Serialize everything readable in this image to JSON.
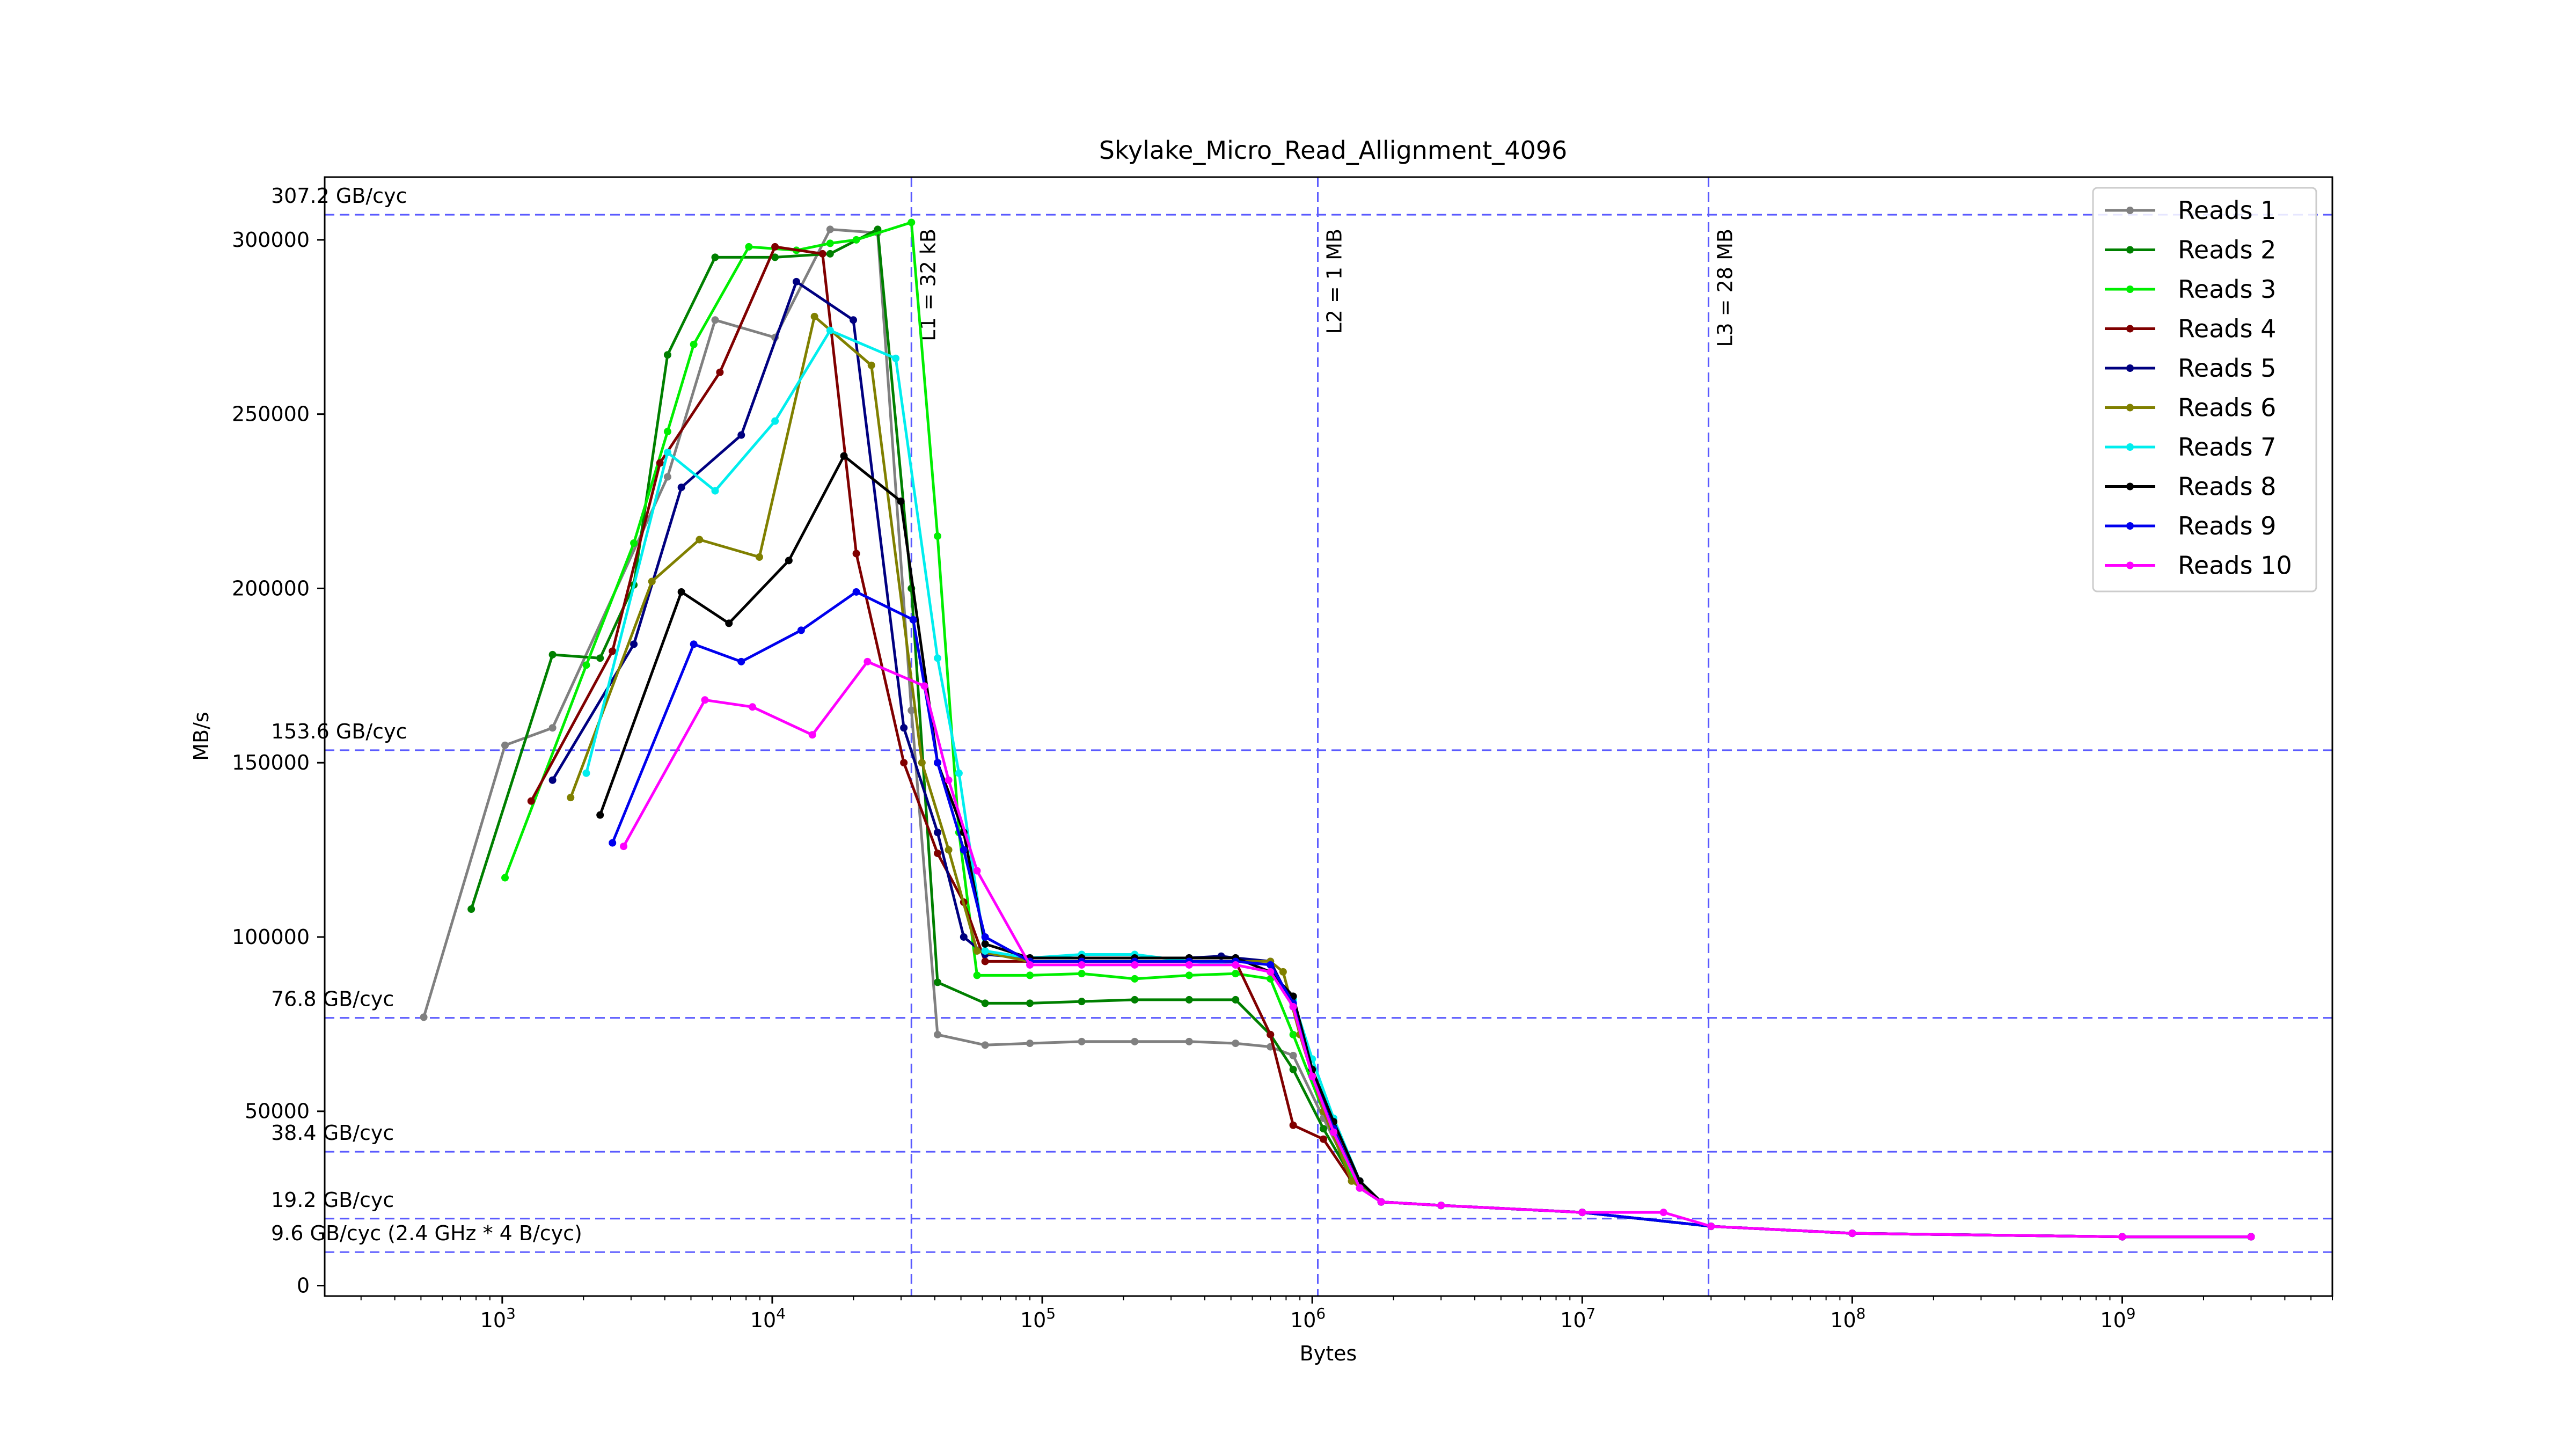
{
  "chart_data": {
    "type": "line",
    "title": "Skylake_Micro_Read_Allignment_4096",
    "xlabel": "Bytes",
    "ylabel": "MB/s",
    "x_scale": "log",
    "xlim": [
      220,
      6000000000
    ],
    "ylim": [
      -3000,
      318000
    ],
    "y_ticks": [
      0,
      50000,
      100000,
      150000,
      200000,
      250000,
      300000
    ],
    "y_tick_labels": [
      "0",
      "50000",
      "100000",
      "150000",
      "200000",
      "250000",
      "300000"
    ],
    "x_ticks": [
      {
        "value": 1000,
        "base": "10",
        "exp": "3"
      },
      {
        "value": 10000,
        "base": "10",
        "exp": "4"
      },
      {
        "value": 100000,
        "base": "10",
        "exp": "5"
      },
      {
        "value": 1000000,
        "base": "10",
        "exp": "6"
      },
      {
        "value": 10000000,
        "base": "10",
        "exp": "7"
      },
      {
        "value": 100000000,
        "base": "10",
        "exp": "8"
      },
      {
        "value": 1000000000,
        "base": "10",
        "exp": "9"
      }
    ],
    "grid": false,
    "legend_position": "top-right",
    "reference_lines": [
      {
        "y": 307200,
        "label": "307.2 GB/cyc"
      },
      {
        "y": 153600,
        "label": "153.6 GB/cyc"
      },
      {
        "y": 76800,
        "label": "76.8 GB/cyc"
      },
      {
        "y": 38400,
        "label": "38.4 GB/cyc"
      },
      {
        "y": 19200,
        "label": "19.2 GB/cyc"
      },
      {
        "y": 9600,
        "label": "9.6 GB/cyc (2.4 GHz * 4 B/cyc)"
      }
    ],
    "cache_lines": [
      {
        "x": 32768,
        "label": "L1 = 32 kB"
      },
      {
        "x": 1048576,
        "label": "L2 = 1 MB"
      },
      {
        "x": 29360128,
        "label": "L3 = 28 MB"
      }
    ],
    "series": [
      {
        "name": "Reads 1",
        "color": "#808080",
        "points": [
          [
            512,
            77000
          ],
          [
            1024,
            155000
          ],
          [
            1536,
            160000
          ],
          [
            4096,
            232000
          ],
          [
            6144,
            277000
          ],
          [
            10240,
            272000
          ],
          [
            16384,
            303000
          ],
          [
            24576,
            302000
          ],
          [
            32768,
            165000
          ],
          [
            40960,
            72000
          ],
          [
            61440,
            69000
          ],
          [
            90000,
            69500
          ],
          [
            140000,
            70000
          ],
          [
            220000,
            70000
          ],
          [
            350000,
            70000
          ],
          [
            520000,
            69500
          ],
          [
            700000,
            68500
          ],
          [
            850000,
            66000
          ],
          [
            1100000,
            48000
          ],
          [
            1400000,
            32000
          ],
          [
            1800000,
            24000
          ],
          [
            3000000,
            23000
          ],
          [
            10000000,
            21000
          ],
          [
            30000000,
            17000
          ],
          [
            100000000,
            15000
          ],
          [
            1000000000,
            14000
          ],
          [
            3000000000,
            14000
          ]
        ]
      },
      {
        "name": "Reads 2",
        "color": "#008000",
        "points": [
          [
            768,
            108000
          ],
          [
            1536,
            181000
          ],
          [
            2304,
            180000
          ],
          [
            3072,
            201000
          ],
          [
            4096,
            267000
          ],
          [
            6144,
            295000
          ],
          [
            10240,
            295000
          ],
          [
            16384,
            296000
          ],
          [
            24576,
            303000
          ],
          [
            32768,
            200000
          ],
          [
            40960,
            87000
          ],
          [
            61440,
            81000
          ],
          [
            90000,
            81000
          ],
          [
            140000,
            81500
          ],
          [
            220000,
            82000
          ],
          [
            350000,
            82000
          ],
          [
            520000,
            82000
          ],
          [
            700000,
            72000
          ],
          [
            850000,
            62000
          ],
          [
            1100000,
            45000
          ],
          [
            1400000,
            31000
          ],
          [
            1800000,
            24000
          ],
          [
            3000000,
            23000
          ],
          [
            10000000,
            21000
          ],
          [
            30000000,
            17000
          ],
          [
            100000000,
            15000
          ],
          [
            1000000000,
            14000
          ],
          [
            3000000000,
            14000
          ]
        ]
      },
      {
        "name": "Reads 3",
        "color": "#00ee00",
        "points": [
          [
            1024,
            117000
          ],
          [
            2048,
            178000
          ],
          [
            3072,
            213000
          ],
          [
            4096,
            245000
          ],
          [
            5120,
            270000
          ],
          [
            8192,
            298000
          ],
          [
            12288,
            297000
          ],
          [
            16384,
            299000
          ],
          [
            20480,
            300000
          ],
          [
            32768,
            305000
          ],
          [
            40960,
            215000
          ],
          [
            49152,
            130000
          ],
          [
            57344,
            89000
          ],
          [
            90000,
            89000
          ],
          [
            140000,
            89500
          ],
          [
            220000,
            88000
          ],
          [
            350000,
            89000
          ],
          [
            520000,
            89500
          ],
          [
            700000,
            88000
          ],
          [
            850000,
            72000
          ],
          [
            1100000,
            50000
          ],
          [
            1400000,
            32000
          ],
          [
            1800000,
            24000
          ],
          [
            3000000,
            23000
          ],
          [
            10000000,
            21000
          ],
          [
            30000000,
            17000
          ],
          [
            100000000,
            15000
          ],
          [
            1000000000,
            14000
          ],
          [
            3000000000,
            14000
          ]
        ]
      },
      {
        "name": "Reads 4",
        "color": "#800000",
        "points": [
          [
            1280,
            139000
          ],
          [
            2560,
            182000
          ],
          [
            3840,
            236000
          ],
          [
            6400,
            262000
          ],
          [
            10240,
            298000
          ],
          [
            15360,
            296000
          ],
          [
            20480,
            210000
          ],
          [
            30720,
            150000
          ],
          [
            40960,
            124000
          ],
          [
            51200,
            110000
          ],
          [
            61440,
            93000
          ],
          [
            90000,
            93000
          ],
          [
            140000,
            93000
          ],
          [
            220000,
            93000
          ],
          [
            350000,
            93000
          ],
          [
            520000,
            93000
          ],
          [
            700000,
            72000
          ],
          [
            850000,
            46000
          ],
          [
            1100000,
            42000
          ],
          [
            1400000,
            30000
          ],
          [
            1800000,
            24000
          ],
          [
            3000000,
            23000
          ],
          [
            10000000,
            21000
          ],
          [
            30000000,
            17000
          ],
          [
            100000000,
            15000
          ],
          [
            1000000000,
            14000
          ],
          [
            3000000000,
            14000
          ]
        ]
      },
      {
        "name": "Reads 5",
        "color": "#000080",
        "points": [
          [
            1536,
            145000
          ],
          [
            3072,
            184000
          ],
          [
            4608,
            229000
          ],
          [
            7680,
            244000
          ],
          [
            12288,
            288000
          ],
          [
            19968,
            277000
          ],
          [
            30720,
            160000
          ],
          [
            40960,
            130000
          ],
          [
            51200,
            100000
          ],
          [
            61440,
            95000
          ],
          [
            90000,
            94000
          ],
          [
            140000,
            94000
          ],
          [
            220000,
            94000
          ],
          [
            350000,
            94000
          ],
          [
            460000,
            94500
          ],
          [
            520000,
            94000
          ],
          [
            700000,
            93000
          ],
          [
            850000,
            80000
          ],
          [
            1000000,
            62000
          ],
          [
            1200000,
            45000
          ],
          [
            1500000,
            28000
          ],
          [
            1800000,
            24000
          ],
          [
            3000000,
            23000
          ],
          [
            10000000,
            21000
          ],
          [
            30000000,
            17000
          ],
          [
            100000000,
            15000
          ],
          [
            1000000000,
            14000
          ],
          [
            3000000000,
            14000
          ]
        ]
      },
      {
        "name": "Reads 6",
        "color": "#808000",
        "points": [
          [
            1792,
            140000
          ],
          [
            3584,
            202000
          ],
          [
            5376,
            214000
          ],
          [
            8960,
            209000
          ],
          [
            14336,
            278000
          ],
          [
            23296,
            264000
          ],
          [
            35840,
            150000
          ],
          [
            45000,
            125000
          ],
          [
            57344,
            96000
          ],
          [
            90000,
            93000
          ],
          [
            140000,
            93000
          ],
          [
            220000,
            93000
          ],
          [
            350000,
            93000
          ],
          [
            520000,
            93000
          ],
          [
            700000,
            93000
          ],
          [
            780000,
            90000
          ],
          [
            900000,
            72000
          ],
          [
            1100000,
            50000
          ],
          [
            1400000,
            30000
          ],
          [
            1800000,
            24000
          ],
          [
            3000000,
            23000
          ],
          [
            10000000,
            21000
          ],
          [
            30000000,
            17000
          ],
          [
            100000000,
            15000
          ],
          [
            1000000000,
            14000
          ],
          [
            3000000000,
            14000
          ]
        ]
      },
      {
        "name": "Reads 7",
        "color": "#00eeee",
        "points": [
          [
            2048,
            147000
          ],
          [
            4096,
            239000
          ],
          [
            6144,
            228000
          ],
          [
            10240,
            248000
          ],
          [
            16384,
            274000
          ],
          [
            28672,
            266000
          ],
          [
            40960,
            180000
          ],
          [
            49152,
            147000
          ],
          [
            61440,
            96000
          ],
          [
            90000,
            94000
          ],
          [
            140000,
            95000
          ],
          [
            220000,
            95000
          ],
          [
            350000,
            93000
          ],
          [
            520000,
            92000
          ],
          [
            700000,
            90000
          ],
          [
            850000,
            82000
          ],
          [
            1000000,
            65000
          ],
          [
            1200000,
            48000
          ],
          [
            1500000,
            30000
          ],
          [
            1800000,
            24000
          ],
          [
            3000000,
            23000
          ],
          [
            10000000,
            21000
          ],
          [
            30000000,
            17000
          ],
          [
            100000000,
            15000
          ],
          [
            1000000000,
            14000
          ],
          [
            3000000000,
            14000
          ]
        ]
      },
      {
        "name": "Reads 8",
        "color": "#000000",
        "points": [
          [
            2304,
            135000
          ],
          [
            4608,
            199000
          ],
          [
            6912,
            190000
          ],
          [
            11520,
            208000
          ],
          [
            18432,
            238000
          ],
          [
            29952,
            225000
          ],
          [
            40960,
            150000
          ],
          [
            51200,
            130000
          ],
          [
            61440,
            98000
          ],
          [
            90000,
            94000
          ],
          [
            140000,
            94000
          ],
          [
            220000,
            94000
          ],
          [
            350000,
            94000
          ],
          [
            520000,
            94000
          ],
          [
            700000,
            90000
          ],
          [
            850000,
            83000
          ],
          [
            1000000,
            62000
          ],
          [
            1200000,
            47000
          ],
          [
            1500000,
            30000
          ],
          [
            1800000,
            24000
          ],
          [
            3000000,
            23000
          ],
          [
            10000000,
            21000
          ],
          [
            30000000,
            17000
          ],
          [
            100000000,
            15000
          ],
          [
            1000000000,
            14000
          ],
          [
            3000000000,
            14000
          ]
        ]
      },
      {
        "name": "Reads 9",
        "color": "#0000ee",
        "points": [
          [
            2560,
            127000
          ],
          [
            5120,
            184000
          ],
          [
            7680,
            179000
          ],
          [
            12800,
            188000
          ],
          [
            20480,
            199000
          ],
          [
            33280,
            191000
          ],
          [
            40960,
            150000
          ],
          [
            51200,
            125000
          ],
          [
            61440,
            100000
          ],
          [
            90000,
            93000
          ],
          [
            140000,
            93000
          ],
          [
            220000,
            93000
          ],
          [
            350000,
            93000
          ],
          [
            520000,
            93000
          ],
          [
            700000,
            92000
          ],
          [
            850000,
            81000
          ],
          [
            1000000,
            60000
          ],
          [
            1200000,
            45000
          ],
          [
            1500000,
            28000
          ],
          [
            1800000,
            24000
          ],
          [
            3000000,
            23000
          ],
          [
            10000000,
            21000
          ],
          [
            30000000,
            17000
          ],
          [
            100000000,
            15000
          ],
          [
            1000000000,
            14000
          ],
          [
            3000000000,
            14000
          ]
        ]
      },
      {
        "name": "Reads 10",
        "color": "#ff00ff",
        "points": [
          [
            2816,
            126000
          ],
          [
            5632,
            168000
          ],
          [
            8448,
            166000
          ],
          [
            14080,
            158000
          ],
          [
            22528,
            179000
          ],
          [
            36608,
            172000
          ],
          [
            45000,
            145000
          ],
          [
            57344,
            119000
          ],
          [
            90000,
            92000
          ],
          [
            140000,
            92000
          ],
          [
            220000,
            92000
          ],
          [
            350000,
            92000
          ],
          [
            520000,
            92000
          ],
          [
            700000,
            90000
          ],
          [
            850000,
            80000
          ],
          [
            1000000,
            60000
          ],
          [
            1200000,
            44000
          ],
          [
            1500000,
            28000
          ],
          [
            1800000,
            24000
          ],
          [
            3000000,
            23000
          ],
          [
            10000000,
            21000
          ],
          [
            20000000,
            21000
          ],
          [
            30000000,
            17000
          ],
          [
            100000000,
            15000
          ],
          [
            1000000000,
            14000
          ],
          [
            3000000000,
            14000
          ]
        ]
      }
    ]
  }
}
